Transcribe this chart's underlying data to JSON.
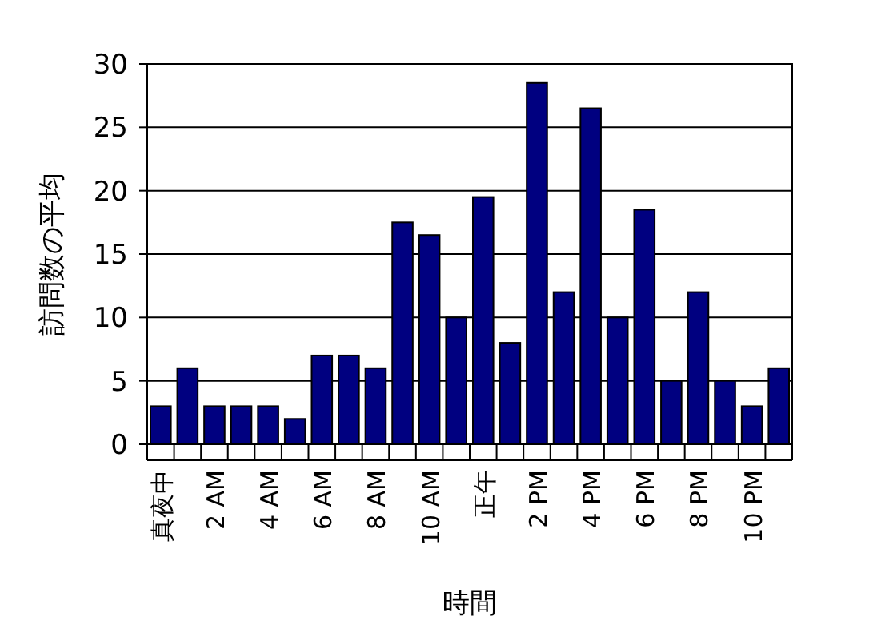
{
  "chart_data": {
    "type": "bar",
    "xlabel": "時間",
    "ylabel": "訪問数の平均",
    "categories": [
      "真夜中",
      null,
      "2 AM",
      null,
      "4 AM",
      null,
      "6 AM",
      null,
      "8 AM",
      null,
      "10 AM",
      null,
      "正午",
      null,
      "2 PM",
      null,
      "4 PM",
      null,
      "6 PM",
      null,
      "8 PM",
      null,
      "10 PM",
      null
    ],
    "values": [
      3,
      6,
      3,
      3,
      3,
      2,
      7,
      7,
      6,
      17.5,
      16.5,
      10,
      19.5,
      8,
      28.5,
      12,
      26.5,
      10,
      18.5,
      5,
      12,
      5,
      3,
      6
    ],
    "color": "#000080",
    "ylim": [
      0,
      30
    ],
    "yticks": [
      0,
      5,
      10,
      15,
      20,
      25,
      30
    ],
    "grid": "y"
  }
}
